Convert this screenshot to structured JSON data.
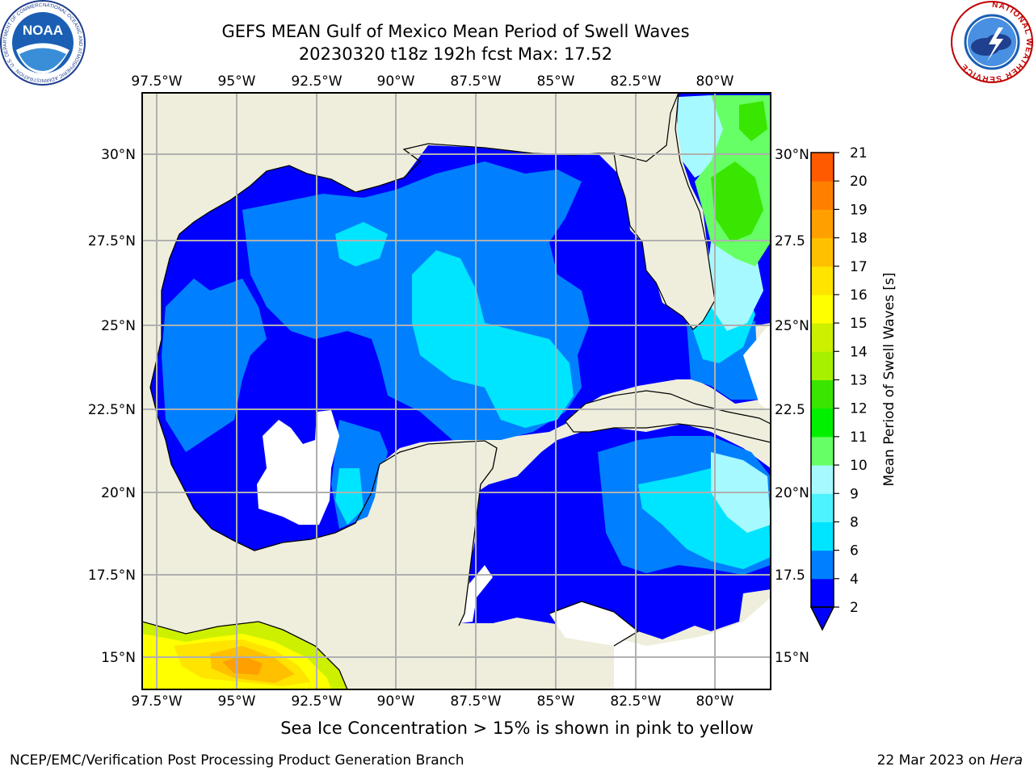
{
  "header": {
    "title_line1": "GEFS MEAN Gulf of Mexico Mean Period of Swell Waves",
    "title_line2": "20230320 t18z 192h fcst   Max: 17.52"
  },
  "map": {
    "longitude_labels": [
      "97.5°W",
      "95°W",
      "92.5°W",
      "90°W",
      "87.5°W",
      "85°W",
      "82.5°W",
      "80°W"
    ],
    "latitude_labels": [
      "30°N",
      "27.5°N",
      "25°N",
      "22.5°N",
      "20°N",
      "17.5°N",
      "15°N"
    ],
    "lat_right_labels": [
      "30°N",
      "27.5",
      "25°N",
      "22.5",
      "20°N",
      "17.5",
      "15°N"
    ],
    "land_color": "#efeedc",
    "grid_color": "#b0b0b0"
  },
  "colorbar": {
    "label": "Mean Period of Swell Waves [s]",
    "ticks": [
      "2",
      "4",
      "6",
      "8",
      "9",
      "10",
      "11",
      "12",
      "13",
      "14",
      "15",
      "16",
      "17",
      "18",
      "19",
      "20",
      "21"
    ],
    "colors": [
      "#0000ff",
      "#0080ff",
      "#00e5ff",
      "#4df3ff",
      "#a6f9ff",
      "#66ff66",
      "#00f000",
      "#39e600",
      "#a6f000",
      "#ccf000",
      "#ffff00",
      "#ffe400",
      "#ffc000",
      "#ffa000",
      "#ff8000",
      "#ff5a00",
      "#ff2a00",
      "#ff0000"
    ]
  },
  "note": "Sea Ice Concentration > 15% is shown in pink to yellow",
  "footer": {
    "left": "NCEP/EMC/Verification Post Processing Product Generation Branch",
    "right_prefix": "22 Mar 2023 on ",
    "right_host": "Hera"
  },
  "logos": {
    "noaa": "NOAA",
    "noaa_ring": "NATIONAL OCEANIC AND ATMOSPHERIC ADMINISTRATION · U.S. DEPARTMENT OF COMMERCE",
    "nws_ring": "NATIONAL WEATHER SERVICE"
  }
}
